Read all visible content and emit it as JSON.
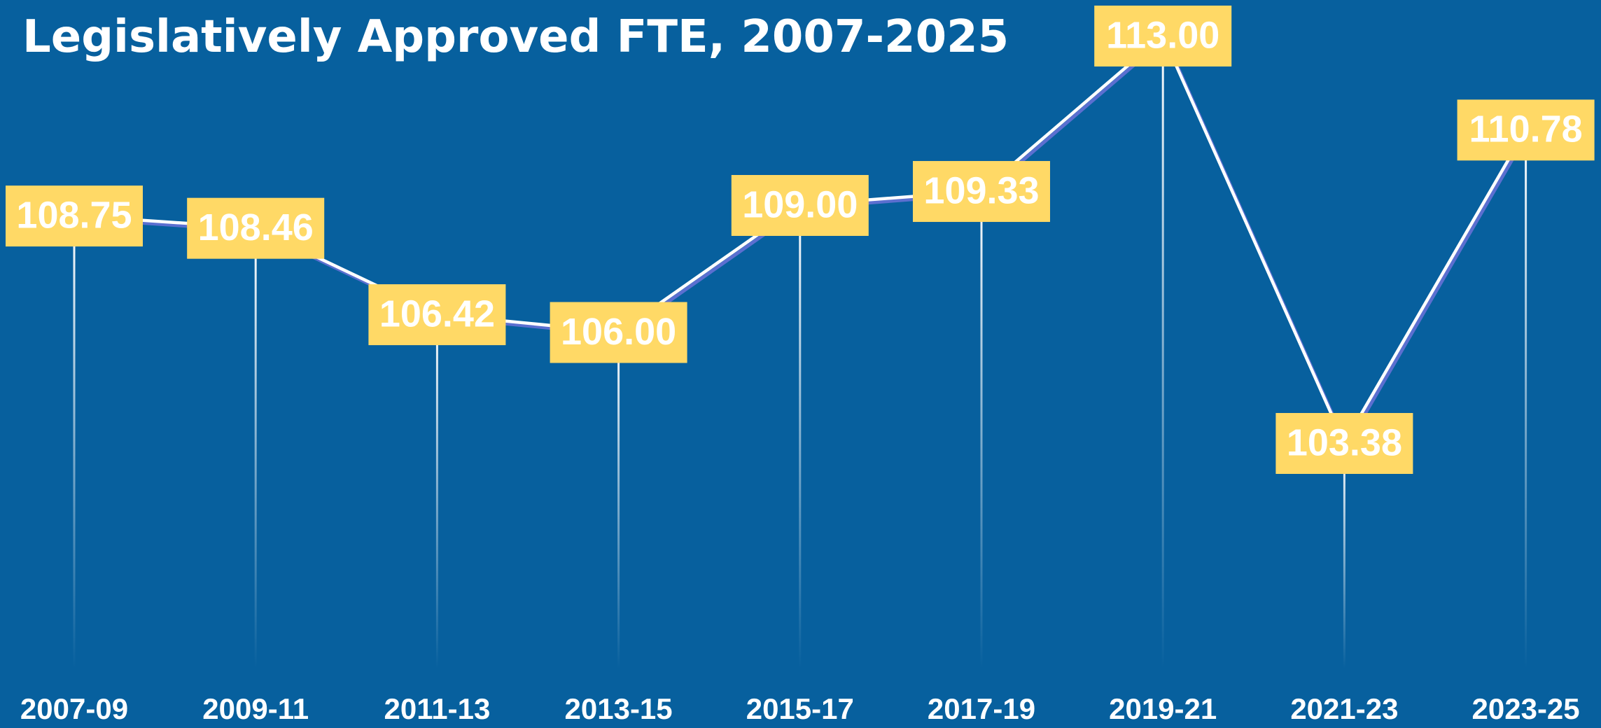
{
  "chart_data": {
    "type": "line",
    "title": "Legislatively Approved FTE, 2007-2025",
    "categories": [
      "2007-09",
      "2009-11",
      "2011-13",
      "2013-15",
      "2015-17",
      "2017-19",
      "2019-21",
      "2021-23",
      "2023-25"
    ],
    "values": [
      108.75,
      108.46,
      106.42,
      106.0,
      109.0,
      109.33,
      113.0,
      103.38,
      110.78
    ],
    "value_labels": [
      "108.75",
      "108.46",
      "106.42",
      "106.00",
      "109.00",
      "109.33",
      "113.00",
      "103.38",
      "110.78"
    ],
    "color": "#ffffff",
    "label_color": "#ffd966",
    "background": "#07609e"
  }
}
